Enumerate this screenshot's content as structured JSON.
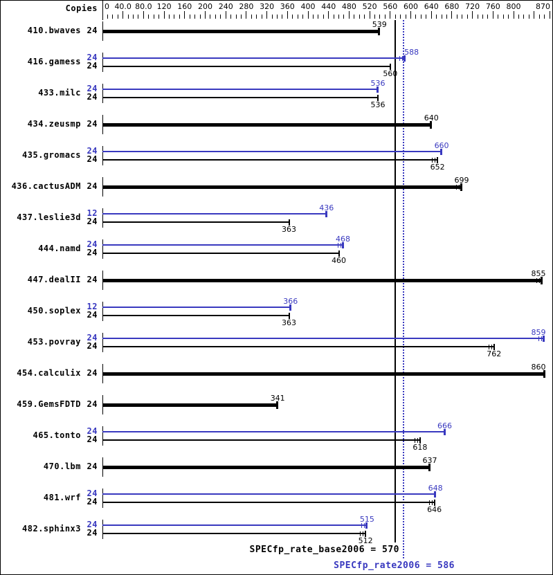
{
  "colors": {
    "base": "#000000",
    "peak": "#3838bf",
    "background": "#ffffff"
  },
  "header": {
    "copies_label": "Copies"
  },
  "footer": {
    "base_label": "SPECfp_rate_base2006 = 570",
    "peak_label": "SPECfp_rate2006 = 586"
  },
  "chart_data": {
    "type": "bar",
    "orientation": "horizontal",
    "title": "SPECfp_rate2006 benchmark results",
    "xlim": [
      0,
      870
    ],
    "grid": false,
    "axis": {
      "min": 0,
      "max": 870,
      "minor_step": 10,
      "major_step": 40,
      "tick_labels": [
        {
          "value": 0,
          "text": "0"
        },
        {
          "value": 40,
          "text": "40.0"
        },
        {
          "value": 80,
          "text": "80.0"
        },
        {
          "value": 120,
          "text": "120"
        },
        {
          "value": 160,
          "text": "160"
        },
        {
          "value": 200,
          "text": "200"
        },
        {
          "value": 240,
          "text": "240"
        },
        {
          "value": 280,
          "text": "280"
        },
        {
          "value": 320,
          "text": "320"
        },
        {
          "value": 360,
          "text": "360"
        },
        {
          "value": 400,
          "text": "400"
        },
        {
          "value": 440,
          "text": "440"
        },
        {
          "value": 480,
          "text": "480"
        },
        {
          "value": 520,
          "text": "520"
        },
        {
          "value": 560,
          "text": "560"
        },
        {
          "value": 600,
          "text": "600"
        },
        {
          "value": 640,
          "text": "640"
        },
        {
          "value": 680,
          "text": "680"
        },
        {
          "value": 720,
          "text": "720"
        },
        {
          "value": 760,
          "text": "760"
        },
        {
          "value": 800,
          "text": "800"
        },
        {
          "value": 870,
          "text": "870"
        }
      ]
    },
    "benchmarks": [
      {
        "name": "410.bwaves",
        "bars": [
          {
            "kind": "base",
            "copies": "24",
            "value": 539,
            "thick": true,
            "marks": false
          }
        ]
      },
      {
        "name": "416.gamess",
        "bars": [
          {
            "kind": "peak",
            "copies": "24",
            "value": 588,
            "marks": true,
            "label_dx": 10
          },
          {
            "kind": "base",
            "copies": "24",
            "value": 560,
            "marks": false
          }
        ]
      },
      {
        "name": "433.milc",
        "bars": [
          {
            "kind": "peak",
            "copies": "24",
            "value": 536,
            "marks": false
          },
          {
            "kind": "base",
            "copies": "24",
            "value": 536,
            "marks": false
          }
        ]
      },
      {
        "name": "434.zeusmp",
        "bars": [
          {
            "kind": "base",
            "copies": "24",
            "value": 640,
            "thick": true,
            "marks": false
          }
        ]
      },
      {
        "name": "435.gromacs",
        "bars": [
          {
            "kind": "peak",
            "copies": "24",
            "value": 660,
            "marks": false
          },
          {
            "kind": "base",
            "copies": "24",
            "value": 652,
            "marks": true
          }
        ]
      },
      {
        "name": "436.cactusADM",
        "bars": [
          {
            "kind": "base",
            "copies": "24",
            "value": 699,
            "thick": true,
            "marks": true
          }
        ]
      },
      {
        "name": "437.leslie3d",
        "bars": [
          {
            "kind": "peak",
            "copies": "12",
            "value": 436,
            "marks": false
          },
          {
            "kind": "base",
            "copies": "24",
            "value": 363,
            "marks": false
          }
        ]
      },
      {
        "name": "444.namd",
        "bars": [
          {
            "kind": "peak",
            "copies": "24",
            "value": 468,
            "marks": true
          },
          {
            "kind": "base",
            "copies": "24",
            "value": 460,
            "marks": false
          }
        ]
      },
      {
        "name": "447.dealII",
        "bars": [
          {
            "kind": "base",
            "copies": "24",
            "value": 855,
            "thick": true,
            "marks": true
          }
        ]
      },
      {
        "name": "450.soplex",
        "bars": [
          {
            "kind": "peak",
            "copies": "12",
            "value": 366,
            "marks": false
          },
          {
            "kind": "base",
            "copies": "24",
            "value": 363,
            "marks": false
          }
        ]
      },
      {
        "name": "453.povray",
        "bars": [
          {
            "kind": "peak",
            "copies": "24",
            "value": 859,
            "marks": true
          },
          {
            "kind": "base",
            "copies": "24",
            "value": 762,
            "marks": true
          }
        ]
      },
      {
        "name": "454.calculix",
        "bars": [
          {
            "kind": "base",
            "copies": "24",
            "value": 860,
            "thick": true,
            "marks": false
          }
        ]
      },
      {
        "name": "459.GemsFDTD",
        "bars": [
          {
            "kind": "base",
            "copies": "24",
            "value": 341,
            "thick": true,
            "marks": false
          }
        ]
      },
      {
        "name": "465.tonto",
        "bars": [
          {
            "kind": "peak",
            "copies": "24",
            "value": 666,
            "marks": false
          },
          {
            "kind": "base",
            "copies": "24",
            "value": 618,
            "marks": true
          }
        ]
      },
      {
        "name": "470.lbm",
        "bars": [
          {
            "kind": "base",
            "copies": "24",
            "value": 637,
            "thick": true,
            "marks": false
          }
        ]
      },
      {
        "name": "481.wrf",
        "bars": [
          {
            "kind": "peak",
            "copies": "24",
            "value": 648,
            "marks": false
          },
          {
            "kind": "base",
            "copies": "24",
            "value": 646,
            "marks": true
          }
        ]
      },
      {
        "name": "482.sphinx3",
        "bars": [
          {
            "kind": "peak",
            "copies": "24",
            "value": 515,
            "marks": true
          },
          {
            "kind": "base",
            "copies": "24",
            "value": 512,
            "marks": true
          }
        ]
      }
    ],
    "reference_lines": [
      {
        "value": 570,
        "style": "solid",
        "color": "#000000",
        "label": "SPECfp_rate_base2006 = 570"
      },
      {
        "value": 586,
        "style": "dotted",
        "color": "#3838bf",
        "label": "SPECfp_rate2006 = 586"
      }
    ],
    "legend_position": "none"
  }
}
